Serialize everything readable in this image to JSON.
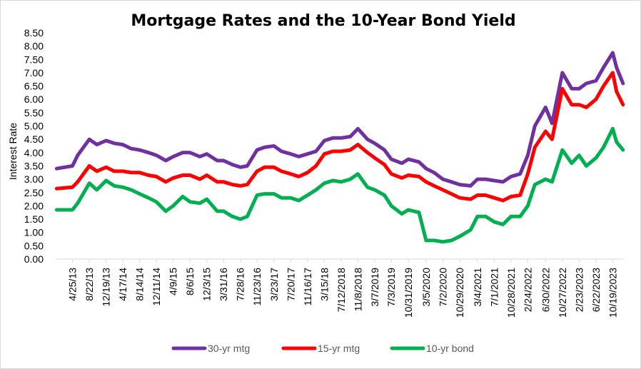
{
  "chart_data": {
    "type": "line",
    "title": "Mortgage Rates and the 10-Year Bond Yield",
    "xlabel": "",
    "ylabel": "Interest Rate",
    "ylim": [
      0,
      8.5
    ],
    "yticks": [
      "0.00",
      "0.50",
      "1.00",
      "1.50",
      "2.00",
      "2.50",
      "3.00",
      "3.50",
      "4.00",
      "4.50",
      "5.00",
      "5.50",
      "6.00",
      "6.50",
      "7.00",
      "7.50",
      "8.00",
      "8.50"
    ],
    "xtick_labels": [
      "4/25/13",
      "8/22/13",
      "12/19/13",
      "4/17/14",
      "8/14/14",
      "12/11/14",
      "4/9/15",
      "8/6/15",
      "12/3/15",
      "3/31/16",
      "7/28/16",
      "11/23/16",
      "3/23/17",
      "7/20/17",
      "11/16/17",
      "3/15/18",
      "7/12/2018",
      "11/8/2018",
      "3/7/2019",
      "7/3/2019",
      "10/31/2019",
      "3/5/2020",
      "7/2/2020",
      "10/29/2020",
      "3/4/2021",
      "7/1/2021",
      "10/28/2021",
      "2/24/2022",
      "6/30/2022",
      "10/27/2022",
      "2/23/2023",
      "6/22/2023",
      "10/19/2023"
    ],
    "grid": false,
    "legend_position": "bottom",
    "x": [
      "1/3/13",
      "4/25/13",
      "6/1/13",
      "8/22/13",
      "10/15/13",
      "12/19/13",
      "2/15/14",
      "4/17/14",
      "6/15/14",
      "8/14/14",
      "10/15/14",
      "12/11/14",
      "2/15/15",
      "4/9/15",
      "6/15/15",
      "8/6/15",
      "10/15/15",
      "12/3/15",
      "2/15/16",
      "3/31/16",
      "6/1/16",
      "7/28/16",
      "9/15/16",
      "11/23/16",
      "1/15/17",
      "3/23/17",
      "5/15/17",
      "7/20/17",
      "9/15/17",
      "11/16/17",
      "1/15/18",
      "3/15/18",
      "5/15/18",
      "7/12/2018",
      "9/15/2018",
      "11/8/2018",
      "1/15/2019",
      "3/7/2019",
      "5/15/2019",
      "7/3/2019",
      "9/15/2019",
      "10/31/2019",
      "1/15/2020",
      "3/5/2020",
      "5/1/2020",
      "7/2/2020",
      "9/1/2020",
      "10/29/2020",
      "1/15/2021",
      "3/4/2021",
      "5/1/2021",
      "7/1/2021",
      "9/1/2021",
      "10/28/2021",
      "1/1/2022",
      "2/24/2022",
      "4/15/2022",
      "6/30/2022",
      "8/15/2022",
      "10/27/2022",
      "1/1/2023",
      "2/23/2023",
      "4/15/2023",
      "6/22/2023",
      "8/15/2023",
      "10/19/2023",
      "11/15/2023",
      "12/31/2023"
    ],
    "series": [
      {
        "name": "30-yr mtg",
        "color": "#7030a0",
        "values": [
          3.4,
          3.5,
          3.9,
          4.5,
          4.3,
          4.45,
          4.35,
          4.3,
          4.15,
          4.1,
          4.0,
          3.9,
          3.7,
          3.85,
          4.0,
          4.0,
          3.85,
          3.95,
          3.7,
          3.7,
          3.55,
          3.45,
          3.5,
          4.1,
          4.2,
          4.25,
          4.05,
          3.95,
          3.85,
          3.95,
          4.05,
          4.45,
          4.55,
          4.55,
          4.6,
          4.9,
          4.5,
          4.35,
          4.1,
          3.75,
          3.6,
          3.75,
          3.65,
          3.4,
          3.25,
          3.0,
          2.9,
          2.8,
          2.75,
          3.0,
          3.0,
          2.95,
          2.9,
          3.1,
          3.2,
          3.9,
          5.0,
          5.7,
          5.1,
          7.0,
          6.4,
          6.4,
          6.6,
          6.7,
          7.2,
          7.75,
          7.2,
          6.6
        ]
      },
      {
        "name": "15-yr mtg",
        "color": "#ff0000",
        "values": [
          2.65,
          2.7,
          2.9,
          3.5,
          3.3,
          3.45,
          3.3,
          3.3,
          3.25,
          3.25,
          3.15,
          3.1,
          2.9,
          3.05,
          3.15,
          3.15,
          3.0,
          3.15,
          2.9,
          2.9,
          2.8,
          2.75,
          2.8,
          3.3,
          3.45,
          3.45,
          3.3,
          3.2,
          3.1,
          3.25,
          3.5,
          3.95,
          4.05,
          4.05,
          4.1,
          4.3,
          4.0,
          3.8,
          3.55,
          3.2,
          3.05,
          3.15,
          3.1,
          2.9,
          2.75,
          2.6,
          2.45,
          2.3,
          2.25,
          2.4,
          2.4,
          2.3,
          2.2,
          2.35,
          2.4,
          3.2,
          4.2,
          4.8,
          4.5,
          6.4,
          5.8,
          5.8,
          5.7,
          6.0,
          6.5,
          7.0,
          6.3,
          5.8
        ]
      },
      {
        "name": "10-yr bond",
        "color": "#00b050",
        "values": [
          1.85,
          1.85,
          2.1,
          2.85,
          2.6,
          2.95,
          2.75,
          2.7,
          2.6,
          2.45,
          2.3,
          2.15,
          1.8,
          2.0,
          2.35,
          2.15,
          2.1,
          2.25,
          1.8,
          1.8,
          1.6,
          1.5,
          1.6,
          2.4,
          2.45,
          2.45,
          2.3,
          2.3,
          2.2,
          2.4,
          2.6,
          2.85,
          2.95,
          2.9,
          3.0,
          3.2,
          2.7,
          2.6,
          2.4,
          2.0,
          1.7,
          1.85,
          1.75,
          0.7,
          0.7,
          0.65,
          0.7,
          0.85,
          1.1,
          1.6,
          1.6,
          1.4,
          1.3,
          1.6,
          1.6,
          2.0,
          2.8,
          3.0,
          2.9,
          4.1,
          3.6,
          3.9,
          3.5,
          3.8,
          4.2,
          4.9,
          4.4,
          4.1
        ]
      }
    ]
  }
}
